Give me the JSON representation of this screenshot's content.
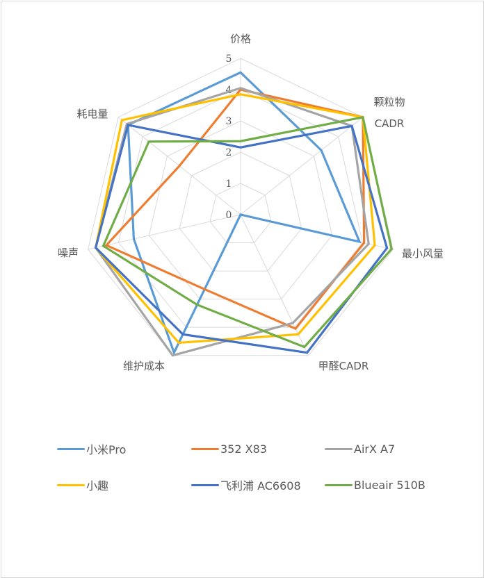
{
  "chart_data": {
    "type": "radar",
    "title": "",
    "axes": [
      "价格",
      "颗粒物CADR",
      "最小风量",
      "甲醛CADR",
      "维护成本",
      "噪声",
      "耗电量"
    ],
    "axis_label_lines": [
      [
        "价格"
      ],
      [
        "颗粒物",
        "CADR"
      ],
      [
        "最小风量"
      ],
      [
        "甲醛CADR"
      ],
      [
        "维护成本"
      ],
      [
        "噪声"
      ],
      [
        "耗电量"
      ]
    ],
    "r_ticks": [
      "0",
      "1",
      "2",
      "3",
      "4",
      "5"
    ],
    "rlim": [
      0,
      5
    ],
    "grid": true,
    "legend_position": "bottom",
    "series": [
      {
        "name": "小米Pro",
        "color": "#5B9BD5",
        "values": [
          4.55,
          3.3,
          3.9,
          0,
          4.9,
          3.5,
          4.6
        ]
      },
      {
        "name": "352 X83",
        "color": "#ED7D31",
        "values": [
          4.0,
          5.0,
          4.05,
          4.05,
          2.65,
          4.4,
          2.5
        ]
      },
      {
        "name": "AirX A7",
        "color": "#A5A5A5",
        "values": [
          4.05,
          4.55,
          4.2,
          3.85,
          5.0,
          4.75,
          4.65
        ]
      },
      {
        "name": "小趣",
        "color": "#FFC000",
        "values": [
          3.85,
          5.0,
          4.4,
          4.25,
          4.55,
          4.75,
          4.85
        ]
      },
      {
        "name": "飞利浦 AC6608",
        "color": "#4472C4",
        "values": [
          2.15,
          4.55,
          4.8,
          4.9,
          4.25,
          4.75,
          4.6
        ]
      },
      {
        "name": "Blueair 510B",
        "color": "#70AD47",
        "values": [
          2.35,
          5.0,
          4.95,
          4.7,
          3.2,
          4.5,
          3.75
        ]
      }
    ]
  },
  "legend": {
    "items": [
      {
        "label": "小米Pro",
        "color": "#5B9BD5"
      },
      {
        "label": "352 X83",
        "color": "#ED7D31"
      },
      {
        "label": "AirX A7",
        "color": "#A5A5A5"
      },
      {
        "label": "小趣",
        "color": "#FFC000"
      },
      {
        "label": "飞利浦 AC6608",
        "color": "#4472C4"
      },
      {
        "label": "Blueair 510B",
        "color": "#70AD47"
      }
    ]
  },
  "colors": {
    "grid": "#D9D9D9",
    "text": "#595959",
    "border": "#D9D9D9"
  }
}
